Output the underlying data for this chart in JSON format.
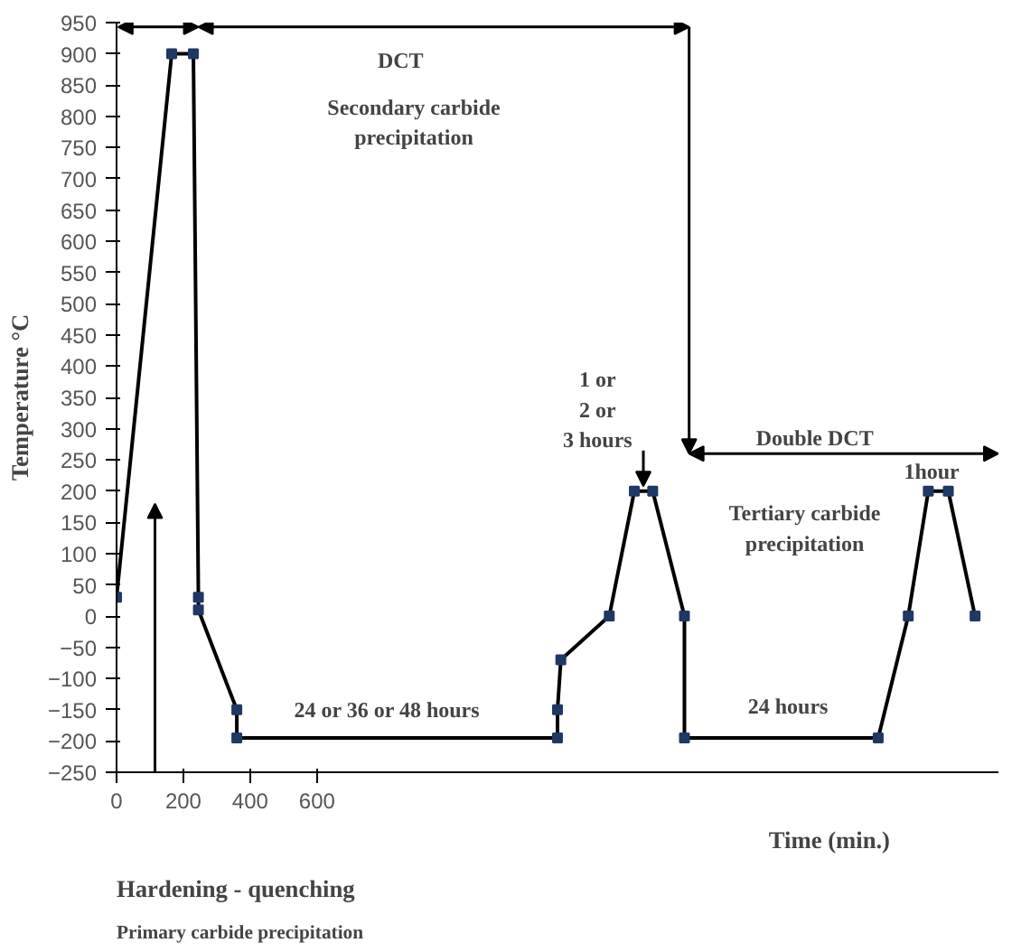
{
  "chart_data": {
    "type": "line",
    "xlabel": "Time (min.)",
    "ylabel": "Temperature °C",
    "x": [
      0,
      165,
      230,
      245,
      245,
      360,
      360,
      1320,
      1320,
      1330,
      1475,
      1550,
      1605,
      1700,
      1700,
      2280,
      2370,
      2430,
      2490,
      2570
    ],
    "series": [
      {
        "color": "#000000",
        "values": [
          30,
          900,
          900,
          30,
          10,
          -150,
          -195,
          -195,
          -150,
          -70,
          0,
          200,
          200,
          0,
          -195,
          -195,
          0,
          200,
          200,
          0
        ]
      }
    ],
    "xlim": [
      0,
      2640
    ],
    "xticks": [
      0,
      200,
      400,
      600
    ],
    "ylim": [
      -250,
      950
    ],
    "yticks": [
      -250,
      -200,
      -150,
      -100,
      -50,
      0,
      50,
      100,
      150,
      200,
      250,
      300,
      350,
      400,
      450,
      500,
      550,
      600,
      650,
      700,
      750,
      800,
      850,
      900,
      950
    ],
    "grid": false,
    "marker": "square",
    "line_style": "solid",
    "annotations": [
      "DCT",
      "Secondary carbide precipitation",
      {
        "text": "1 or\n2 or\n3 hours",
        "x": 1577,
        "y": 200
      },
      "Double DCT",
      "1hour",
      "Tertiary carbide precipitation",
      "24 or 36 or 48 hours",
      "24 hours",
      "Hardening - quenching",
      "Primary carbide precipitation"
    ]
  }
}
